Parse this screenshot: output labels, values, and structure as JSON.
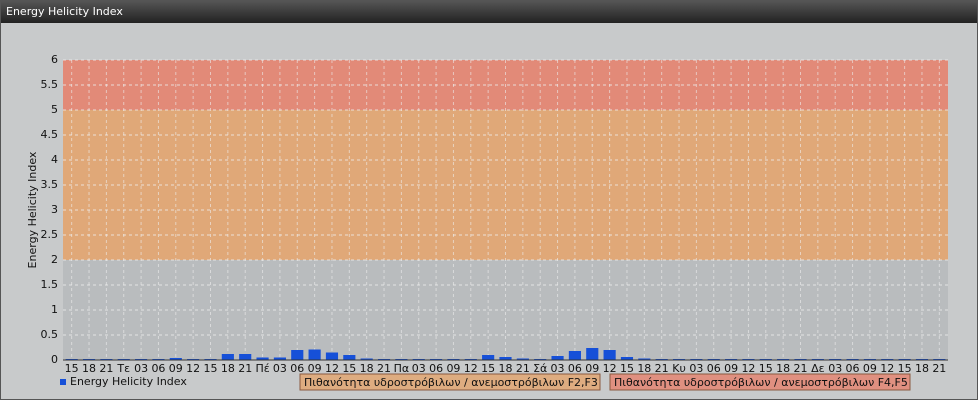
{
  "chart_data": {
    "type": "bar",
    "title": "Energy Helicity Index",
    "y_label": "Energy Helicity Index",
    "categories": [
      "15",
      "18",
      "21",
      "Τε",
      "03",
      "06",
      "09",
      "12",
      "15",
      "18",
      "21",
      "Πέ",
      "03",
      "06",
      "09",
      "12",
      "15",
      "18",
      "21",
      "Πα",
      "03",
      "06",
      "09",
      "12",
      "15",
      "18",
      "21",
      "Σά",
      "03",
      "06",
      "09",
      "12",
      "15",
      "18",
      "21",
      "Κυ",
      "03",
      "06",
      "09",
      "12",
      "15",
      "18",
      "21",
      "Δε",
      "03",
      "06",
      "09",
      "12",
      "15",
      "18",
      "21"
    ],
    "series": [
      {
        "name": "Energy Helicity Index",
        "color": "#1650d8",
        "values": [
          0.02,
          0.02,
          0.02,
          0.02,
          0.02,
          0.02,
          0.04,
          0.02,
          0.02,
          0.12,
          0.12,
          0.05,
          0.05,
          0.2,
          0.21,
          0.15,
          0.1,
          0.03,
          0.02,
          0.02,
          0.02,
          0.02,
          0.02,
          0.02,
          0.1,
          0.06,
          0.03,
          0.02,
          0.08,
          0.18,
          0.24,
          0.2,
          0.06,
          0.03,
          0.02,
          0.02,
          0.02,
          0.02,
          0.02,
          0.02,
          0.02,
          0.02,
          0.02,
          0.02,
          0.02,
          0.02,
          0.02,
          0.02,
          0.02,
          0.02,
          0.02
        ]
      }
    ],
    "bands": [
      {
        "from": 2,
        "to": 5,
        "color": "#e0a878",
        "label": "Πιθανότητα υδροστρόβιλων / ανεμοστρόβιλων F2,F3"
      },
      {
        "from": 5,
        "to": 6,
        "color": "#e28a78",
        "label": "Πιθανότητα υδροστρόβιλων / ανεμοστρόβιλων F4,F5"
      }
    ],
    "ylim": [
      0,
      6
    ],
    "yticks": [
      0,
      0.5,
      1,
      1.5,
      2,
      2.5,
      3,
      3.5,
      4,
      4.5,
      5,
      5.5,
      6
    ],
    "grid": true
  }
}
